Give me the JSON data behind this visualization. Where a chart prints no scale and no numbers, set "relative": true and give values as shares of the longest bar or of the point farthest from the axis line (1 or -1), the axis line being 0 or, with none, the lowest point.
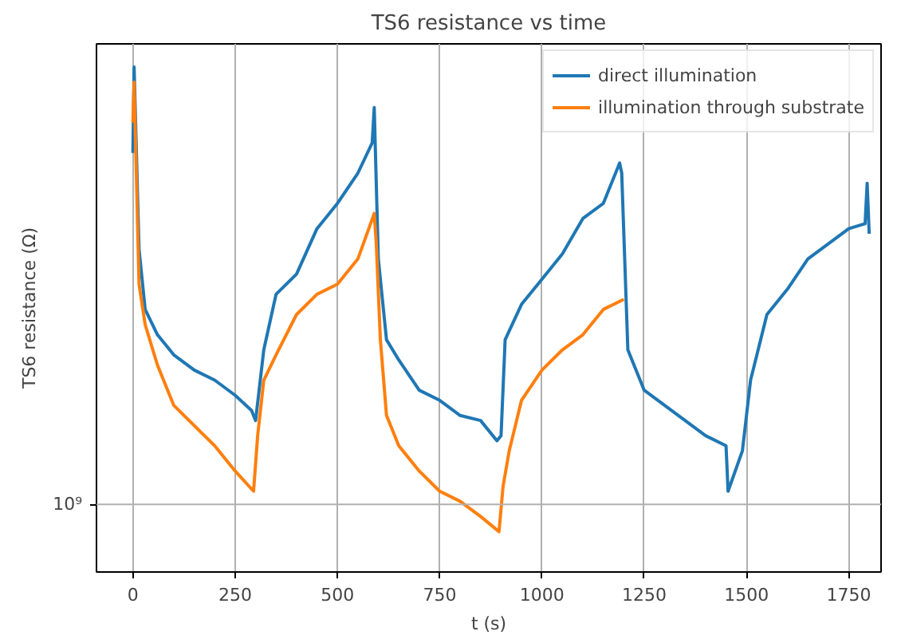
{
  "chart_data": {
    "type": "line",
    "title": "TS6 resistance vs time",
    "xlabel": "t (s)",
    "ylabel": "TS6 resistance (Ω)",
    "relative": true,
    "grid": "x",
    "legend": "top right",
    "xlim": [
      -89,
      1829
    ],
    "xticks": [
      0,
      250,
      500,
      750,
      1000,
      1250,
      1500,
      1750
    ],
    "ref_lines": [
      {
        "axis": "y",
        "value": 0.134,
        "label": "10⁹",
        "color": "#b0b0b0"
      }
    ],
    "series": [
      {
        "name": "direct illumination",
        "color": "#1f77b4",
        "x": [
          0,
          3,
          15,
          30,
          60,
          100,
          150,
          200,
          250,
          290,
          300,
          320,
          350,
          400,
          450,
          500,
          550,
          585,
          590,
          600,
          620,
          650,
          700,
          750,
          800,
          850,
          890,
          900,
          910,
          950,
          1000,
          1050,
          1100,
          1150,
          1190,
          1195,
          1210,
          1250,
          1300,
          1350,
          1400,
          1450,
          1455,
          1490,
          1510,
          1550,
          1600,
          1650,
          1700,
          1750,
          1790,
          1795,
          1800
        ],
        "values": [
          0.83,
          1.0,
          0.64,
          0.52,
          0.47,
          0.43,
          0.4,
          0.38,
          0.35,
          0.32,
          0.3,
          0.44,
          0.55,
          0.59,
          0.68,
          0.73,
          0.79,
          0.85,
          0.92,
          0.62,
          0.46,
          0.42,
          0.36,
          0.34,
          0.31,
          0.3,
          0.26,
          0.27,
          0.46,
          0.53,
          0.58,
          0.63,
          0.7,
          0.73,
          0.81,
          0.79,
          0.44,
          0.36,
          0.33,
          0.3,
          0.27,
          0.25,
          0.16,
          0.24,
          0.38,
          0.51,
          0.56,
          0.62,
          0.65,
          0.68,
          0.69,
          0.77,
          0.67
        ]
      },
      {
        "name": "illumination through substrate",
        "color": "#ff7f0e",
        "x": [
          0,
          3,
          15,
          30,
          60,
          100,
          150,
          200,
          250,
          295,
          305,
          320,
          350,
          400,
          450,
          500,
          550,
          590,
          595,
          605,
          620,
          650,
          700,
          750,
          800,
          850,
          895,
          905,
          920,
          950,
          1000,
          1050,
          1100,
          1150,
          1200
        ],
        "values": [
          0.89,
          0.97,
          0.57,
          0.49,
          0.41,
          0.33,
          0.29,
          0.25,
          0.2,
          0.16,
          0.27,
          0.38,
          0.43,
          0.51,
          0.55,
          0.57,
          0.62,
          0.71,
          0.65,
          0.46,
          0.31,
          0.25,
          0.2,
          0.16,
          0.14,
          0.11,
          0.08,
          0.17,
          0.24,
          0.34,
          0.4,
          0.44,
          0.47,
          0.52,
          0.54
        ]
      }
    ]
  }
}
